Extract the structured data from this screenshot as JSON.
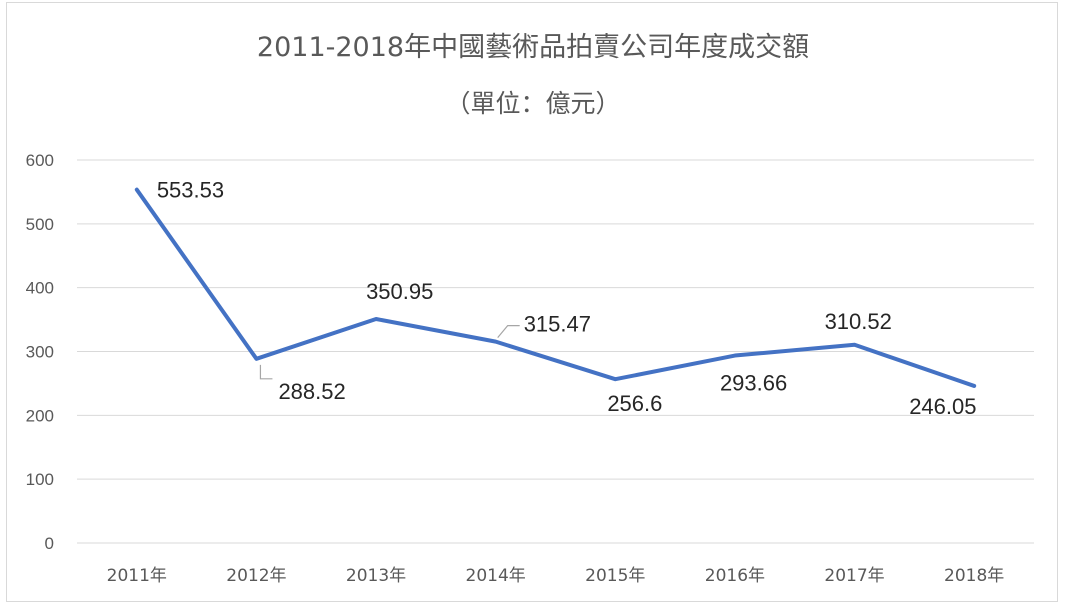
{
  "chart_data": {
    "type": "line",
    "title": "2011-2018年中國藝術品拍賣公司年度成交額",
    "subtitle": "（單位：億元）",
    "categories": [
      "2011年",
      "2012年",
      "2013年",
      "2014年",
      "2015年",
      "2016年",
      "2017年",
      "2018年"
    ],
    "values": [
      553.53,
      288.52,
      350.95,
      315.47,
      256.6,
      293.66,
      310.52,
      246.05
    ],
    "data_labels": [
      "553.53",
      "288.52",
      "350.95",
      "315.47",
      "256.6",
      "293.66",
      "310.52",
      "246.05"
    ],
    "ylim": [
      0,
      600
    ],
    "yticks": [
      "0",
      "100",
      "200",
      "300",
      "400",
      "500",
      "600"
    ],
    "xlabel": "",
    "ylabel": "",
    "grid": true,
    "legend": "none",
    "series_color": "#4472c4"
  }
}
